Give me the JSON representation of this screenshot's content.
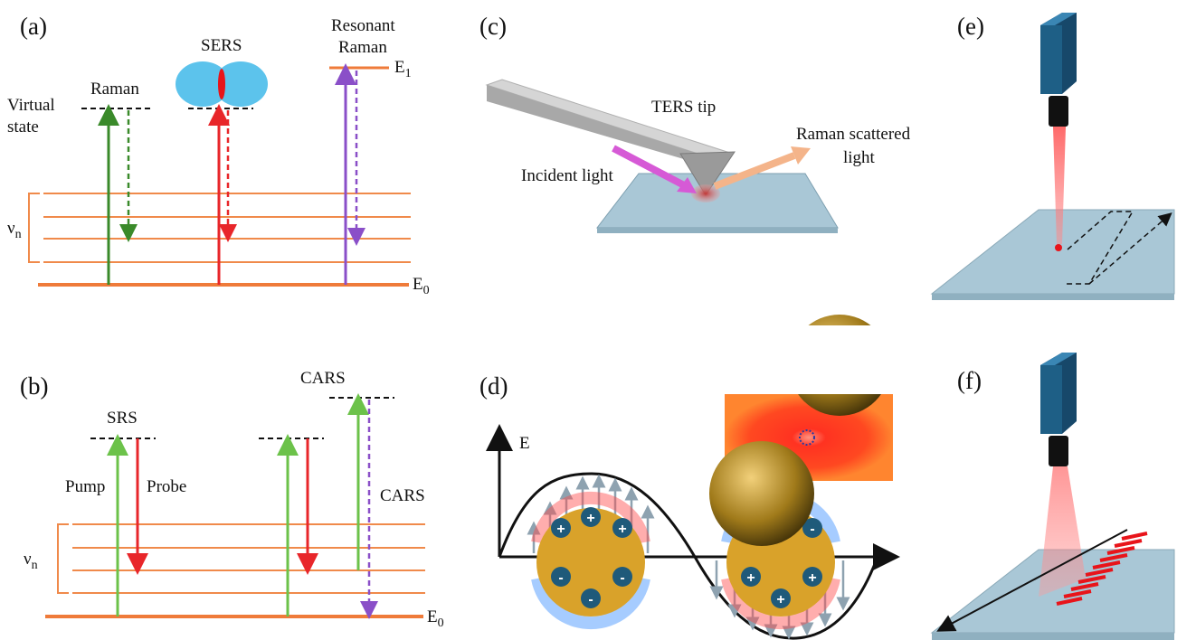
{
  "panels": {
    "a": {
      "label": "(a)",
      "virtual_state": [
        "Virtual",
        "state"
      ],
      "raman": "Raman",
      "sers": "SERS",
      "resonant_raman": [
        "Resonant",
        "Raman"
      ],
      "e1": "E",
      "e1_sub": "1",
      "e0": "E",
      "e0_sub": "0",
      "nu": "ν",
      "nu_sub": "n"
    },
    "b": {
      "label": "(b)",
      "srs": "SRS",
      "pump": "Pump",
      "probe": "Probe",
      "cars_top": "CARS",
      "cars_side": "CARS",
      "e0": "E",
      "e0_sub": "0",
      "nu": "ν",
      "nu_sub": "n"
    },
    "c": {
      "label": "(c)",
      "ters_tip": "TERS tip",
      "incident_light": "Incident light",
      "raman_scattered": [
        "Raman scattered",
        "light"
      ]
    },
    "d": {
      "label": "(d)",
      "axis_e": "E",
      "left_signs": [
        "+",
        "+",
        "+",
        "-",
        "-",
        "-"
      ],
      "right_signs": [
        "-",
        "-",
        "-",
        "+",
        "+",
        "+"
      ]
    },
    "e": {
      "label": "(e)"
    },
    "f": {
      "label": "(f)"
    }
  },
  "colors": {
    "level": "#f08a4b",
    "ground": "#ef7b3a",
    "green_dark": "#3a8a2a",
    "green_light": "#6cc24a",
    "red": "#e8262a",
    "purple": "#8a4fc8",
    "magenta": "#d65ad6",
    "peach": "#f4b48a",
    "substrate": "#a9c7d6",
    "camera": "#1e5f86",
    "gold": "#d9a22a",
    "charge": "#1f5a7a"
  }
}
